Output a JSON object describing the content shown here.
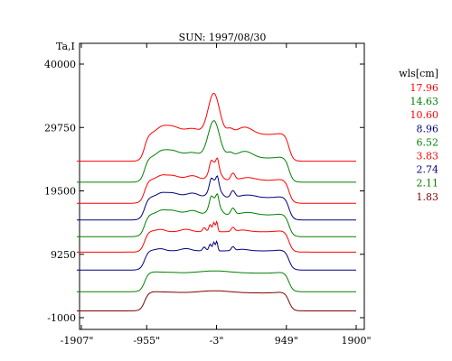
{
  "chart_data": {
    "type": "line",
    "title": "SUN: 1997/08/30",
    "ylabel": "Ta,I",
    "xlabel": "",
    "x_ticks": [
      "-1907\"",
      "-955\"",
      "-3\"",
      "949\"",
      "1900\""
    ],
    "x_tick_values": [
      -1907,
      -955,
      -3,
      949,
      1900
    ],
    "y_ticks": [
      "40000",
      "29750",
      "19500",
      "9250",
      "-1000"
    ],
    "y_tick_values": [
      40000,
      29750,
      19500,
      9250,
      -1000
    ],
    "xlim": [
      -1907,
      1900
    ],
    "ylim": [
      -1000,
      43500
    ],
    "legend": {
      "title": "wls[cm]",
      "position": "right"
    },
    "series": [
      {
        "name": "17.96",
        "color": "#ff0000",
        "baseline": 24300,
        "disk": 4300,
        "shape": "high"
      },
      {
        "name": "14.63",
        "color": "#008000",
        "baseline": 20900,
        "disk": 3900,
        "shape": "high"
      },
      {
        "name": "10.60",
        "color": "#ff0000",
        "baseline": 17500,
        "disk": 3700,
        "shape": "mid"
      },
      {
        "name": "8.96",
        "color": "#000080",
        "baseline": 14800,
        "disk": 3600,
        "shape": "mid"
      },
      {
        "name": "6.52",
        "color": "#008000",
        "baseline": 12100,
        "disk": 3500,
        "shape": "mid"
      },
      {
        "name": "3.83",
        "color": "#ff0000",
        "baseline": 9600,
        "disk": 3300,
        "shape": "low"
      },
      {
        "name": "2.74",
        "color": "#000080",
        "baseline": 6700,
        "disk": 3100,
        "shape": "low"
      },
      {
        "name": "2.11",
        "color": "#008000",
        "baseline": 3200,
        "disk": 3000,
        "shape": "flat"
      },
      {
        "name": "1.83",
        "color": "#800000",
        "baseline": 100,
        "disk": 2900,
        "shape": "flat"
      }
    ]
  }
}
